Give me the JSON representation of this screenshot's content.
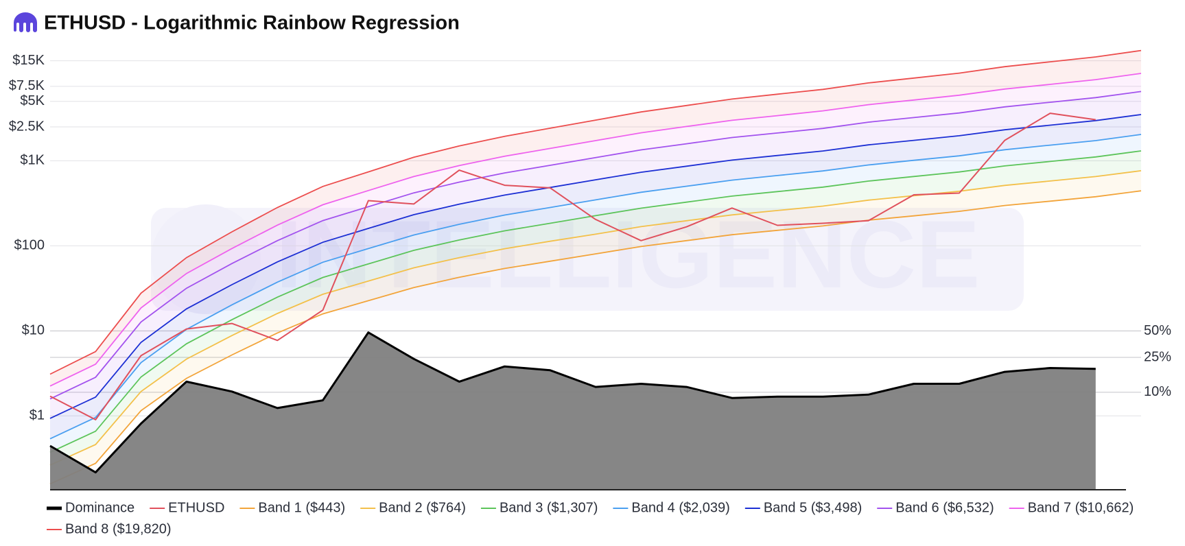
{
  "chart_data": {
    "type": "line",
    "title": "ETHUSD - Logarithmic Rainbow Regression",
    "watermark": "INTELLIGENCE",
    "categories": [
      null,
      null,
      null,
      null,
      null,
      null,
      null,
      null,
      null,
      null,
      null,
      null,
      null,
      null,
      null,
      null,
      null,
      null,
      null,
      null,
      null,
      null,
      null,
      null,
      null
    ],
    "yscale": "log",
    "ylim": [
      0.135,
      22000
    ],
    "yticks": [
      {
        "value": 1,
        "label": "$1"
      },
      {
        "value": 10,
        "label": "$10"
      },
      {
        "value": 100,
        "label": "$100"
      },
      {
        "value": 1000,
        "label": "$1K"
      },
      {
        "value": 2500,
        "label": "$2.5K"
      },
      {
        "value": 5000,
        "label": "$5K"
      },
      {
        "value": 7500,
        "label": "$7.5K"
      },
      {
        "value": 15000,
        "label": "$15K"
      }
    ],
    "y2scale": "log",
    "y2lim": [
      0.774,
      87000
    ],
    "y2ticks": [
      {
        "value": 10,
        "label": "10%"
      },
      {
        "value": 25,
        "label": "25%"
      },
      {
        "value": 50,
        "label": "50%"
      }
    ],
    "grid": true,
    "band_fill": true,
    "legend": "bottom",
    "series": [
      {
        "name": "Dominance",
        "color": "#000000",
        "fill_color": "#7f7f7f",
        "style": "area",
        "axis": "y2",
        "values": [
          2.45,
          1.22,
          4.4,
          13.2,
          10.2,
          6.6,
          8.1,
          48,
          24,
          13.2,
          19.7,
          17.8,
          11.5,
          12.5,
          11.5,
          8.6,
          8.9,
          8.9,
          9.4,
          12.5,
          12.5,
          17.1,
          18.9,
          18.5,
          null
        ]
      },
      {
        "name": "ETHUSD",
        "color": "#e0505c",
        "values": [
          1.7,
          0.9,
          5.1,
          10.5,
          12.2,
          7.7,
          17.5,
          340,
          310,
          775,
          515,
          480,
          204,
          115,
          167,
          278,
          174,
          184,
          197,
          398,
          417,
          1740,
          3620,
          3040,
          null
        ]
      },
      {
        "name": "Band 1 ($443)",
        "color": "#f2a43a",
        "values": [
          0.158,
          0.276,
          1.15,
          2.76,
          5.2,
          9.44,
          15.8,
          22.6,
          32.3,
          42.6,
          54.1,
          65.9,
          80.4,
          98,
          115,
          135,
          152,
          171,
          200,
          225,
          254,
          298,
          335,
          378,
          443
        ]
      },
      {
        "name": "Band 2 ($764)",
        "color": "#f3c04a",
        "values": [
          0.263,
          0.459,
          1.93,
          4.65,
          8.79,
          16.0,
          26.9,
          38.4,
          55.0,
          72.6,
          92.3,
          113,
          137,
          168,
          197,
          231,
          260,
          293,
          344,
          388,
          438,
          513,
          578,
          652,
          764
        ]
      },
      {
        "name": "Band 3 ($1,307)",
        "color": "#5cc45a",
        "values": [
          0.372,
          0.658,
          2.86,
          7.03,
          13.5,
          24.9,
          42.4,
          61.1,
          88.3,
          117,
          150,
          184,
          226,
          277,
          326,
          384,
          434,
          490,
          577,
          653,
          738,
          869,
          982,
          1109,
          1307
        ]
      },
      {
        "name": "Band 4 ($2,039)",
        "color": "#4a9ff0",
        "values": [
          0.537,
          0.957,
          4.22,
          10.4,
          20.2,
          37.4,
          64.0,
          92.7,
          134,
          179,
          230,
          282,
          347,
          426,
          502,
          592,
          670,
          759,
          893,
          1012,
          1143,
          1349,
          1528,
          1726,
          2039
        ]
      },
      {
        "name": "Band 5 ($3,498)",
        "color": "#1c2fd4",
        "values": [
          0.933,
          1.66,
          7.31,
          18.1,
          34.9,
          64.7,
          110,
          160,
          232,
          309,
          395,
          485,
          597,
          733,
          863,
          1019,
          1153,
          1303,
          1538,
          1738,
          1968,
          2317,
          2624,
          2972,
          3498
        ]
      },
      {
        "name": "Band 6 ($6,532)",
        "color": "#a252ee",
        "values": [
          1.58,
          2.84,
          12.7,
          31.7,
          61.8,
          115,
          198,
          288,
          419,
          561,
          719,
          885,
          1091,
          1343,
          1585,
          1875,
          2123,
          2404,
          2844,
          3221,
          3648,
          4305,
          4875,
          5534,
          6532
        ]
      },
      {
        "name": "Band 7 ($10,662)",
        "color": "#ee62ee",
        "values": [
          2.24,
          4.05,
          18.6,
          47.2,
          92.9,
          175,
          304,
          446,
          652,
          877,
          1130,
          1396,
          1726,
          2133,
          2529,
          2992,
          3396,
          3864,
          4571,
          5188,
          5902,
          6982,
          7925,
          8995,
          10662
        ]
      },
      {
        "name": "Band 8 ($19,820)",
        "color": "#ec4d4d",
        "values": [
          3.09,
          5.7,
          27.7,
          72.6,
          146,
          282,
          499,
          740,
          1099,
          1493,
          1941,
          2415,
          3006,
          3750,
          4467,
          5321,
          6067,
          6918,
          8241,
          9397,
          10740,
          12794,
          14588,
          16634,
          19820
        ]
      }
    ]
  }
}
